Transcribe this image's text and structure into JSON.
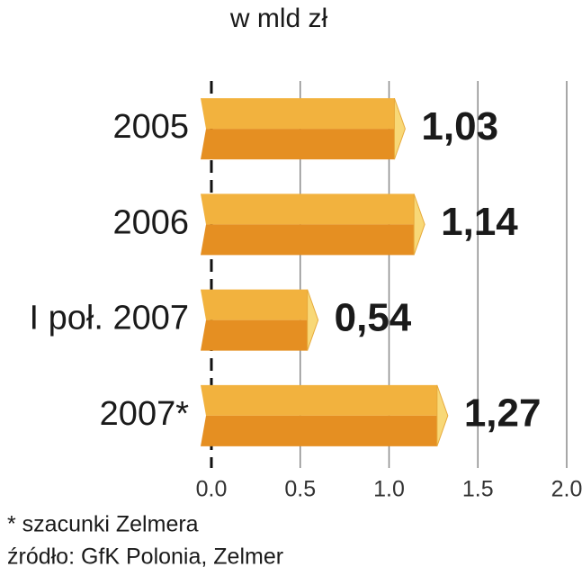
{
  "chart_data": {
    "type": "bar",
    "orientation": "horizontal",
    "title": "w mld zł",
    "categories": [
      "2005",
      "2006",
      "I poł. 2007",
      "2007*"
    ],
    "values": [
      1.03,
      1.14,
      0.54,
      1.27
    ],
    "value_labels": [
      "1,03",
      "1,14",
      "0,54",
      "1,27"
    ],
    "color": "#f2b23e",
    "xlim": [
      0,
      2
    ],
    "xticks": [
      {
        "value": 0,
        "label": "0.0"
      },
      0.5,
      {
        "value": 1,
        "label": "1.0"
      },
      1.5,
      {
        "value": 2,
        "label": "2.0"
      }
    ],
    "grid": true,
    "footnote": "* szacunki Zelmera",
    "source": "źródło: GfK Polonia, Zelmer"
  }
}
